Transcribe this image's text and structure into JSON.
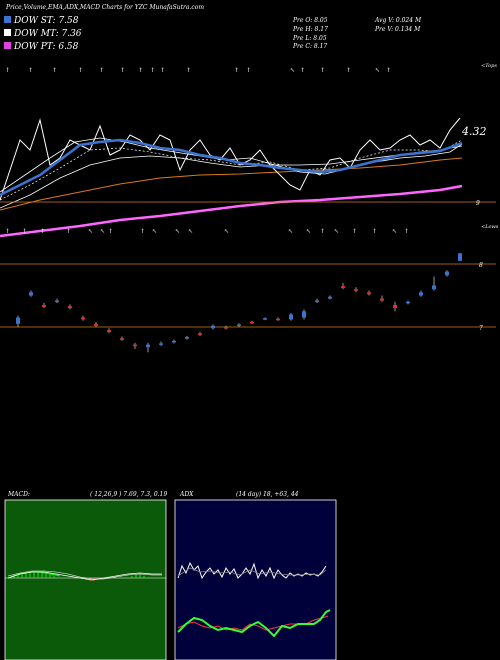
{
  "header": {
    "title": "Price,Volume,EMA,ADX,MACD Charts for YZC MunafaSutra.com"
  },
  "legend": [
    {
      "label": "DOW ST: 7.58",
      "color": "#3a73d0"
    },
    {
      "label": "DOW MT: 7.36",
      "color": "#ffffff"
    },
    {
      "label": "DOW PT: 6.58",
      "color": "#e040e0"
    }
  ],
  "stats": {
    "prev_open": "Pre   O: 8.05",
    "prev_high": "Pre   H: 8.17",
    "prev_low": "Pre   L: 8.05",
    "prev_close": "Pre   C: 8.17",
    "avg_volume": "Avg V: 0.024   M",
    "prev_volume": "Pre   V: 0.134   M"
  },
  "price_panel": {
    "top_label": "<Tops",
    "low_label": "<Lows",
    "value_label": "4.32",
    "right_label_9": "9",
    "right_label_8": "8",
    "right_label_7": "7"
  },
  "macd": {
    "label": "MACD:",
    "params": "( 12,26,9 ) 7.69,  7.3,  0.19",
    "bg": "#0a5a0a"
  },
  "adx": {
    "label": "ADX",
    "params": "(14  day) 18,  +63,  44",
    "bg": "#00003a"
  },
  "chart_data": {
    "type": "line",
    "title": "Price,Volume,EMA,ADX,MACD Charts for YZC MunafaSutra.com",
    "series": [
      {
        "name": "DOW ST",
        "last": 7.58
      },
      {
        "name": "DOW MT",
        "last": 7.36
      },
      {
        "name": "DOW PT",
        "last": 6.58
      }
    ],
    "candles": [
      {
        "o": 7.05,
        "c": 7.15,
        "h": 7.18,
        "l": 7.0
      },
      {
        "o": 7.5,
        "c": 7.55,
        "h": 7.58,
        "l": 7.48
      },
      {
        "o": 7.35,
        "c": 7.32,
        "h": 7.38,
        "l": 7.3
      },
      {
        "o": 7.4,
        "c": 7.42,
        "h": 7.45,
        "l": 7.38
      },
      {
        "o": 7.33,
        "c": 7.3,
        "h": 7.36,
        "l": 7.28
      },
      {
        "o": 7.15,
        "c": 7.12,
        "h": 7.18,
        "l": 7.1
      },
      {
        "o": 7.05,
        "c": 7.02,
        "h": 7.08,
        "l": 7.0
      },
      {
        "o": 6.95,
        "c": 6.92,
        "h": 6.98,
        "l": 6.9
      },
      {
        "o": 6.82,
        "c": 6.8,
        "h": 6.85,
        "l": 6.78
      },
      {
        "o": 6.72,
        "c": 6.7,
        "h": 6.75,
        "l": 6.65
      },
      {
        "o": 6.68,
        "c": 6.72,
        "h": 6.75,
        "l": 6.6
      },
      {
        "o": 6.72,
        "c": 6.74,
        "h": 6.77,
        "l": 6.7
      },
      {
        "o": 6.76,
        "c": 6.78,
        "h": 6.8,
        "l": 6.74
      },
      {
        "o": 6.82,
        "c": 6.84,
        "h": 6.86,
        "l": 6.8
      },
      {
        "o": 6.9,
        "c": 6.88,
        "h": 6.92,
        "l": 6.86
      },
      {
        "o": 6.98,
        "c": 7.02,
        "h": 7.04,
        "l": 6.96
      },
      {
        "o": 7.0,
        "c": 6.98,
        "h": 7.02,
        "l": 6.96
      },
      {
        "o": 7.02,
        "c": 7.04,
        "h": 7.06,
        "l": 7.0
      },
      {
        "o": 7.08,
        "c": 7.06,
        "h": 7.1,
        "l": 7.05
      },
      {
        "o": 7.12,
        "c": 7.14,
        "h": 7.15,
        "l": 7.11
      },
      {
        "o": 7.13,
        "c": 7.12,
        "h": 7.15,
        "l": 7.1
      },
      {
        "o": 7.12,
        "c": 7.2,
        "h": 7.22,
        "l": 7.1
      },
      {
        "o": 7.15,
        "c": 7.25,
        "h": 7.28,
        "l": 7.12
      },
      {
        "o": 7.4,
        "c": 7.42,
        "h": 7.45,
        "l": 7.38
      },
      {
        "o": 7.45,
        "c": 7.48,
        "h": 7.5,
        "l": 7.44
      },
      {
        "o": 7.65,
        "c": 7.62,
        "h": 7.7,
        "l": 7.6
      },
      {
        "o": 7.6,
        "c": 7.58,
        "h": 7.63,
        "l": 7.55
      },
      {
        "o": 7.55,
        "c": 7.52,
        "h": 7.58,
        "l": 7.5
      },
      {
        "o": 7.45,
        "c": 7.42,
        "h": 7.5,
        "l": 7.4
      },
      {
        "o": 7.35,
        "c": 7.3,
        "h": 7.4,
        "l": 7.25
      },
      {
        "o": 7.38,
        "c": 7.4,
        "h": 7.42,
        "l": 7.36
      },
      {
        "o": 7.5,
        "c": 7.55,
        "h": 7.58,
        "l": 7.48
      },
      {
        "o": 7.6,
        "c": 7.66,
        "h": 7.8,
        "l": 7.58
      },
      {
        "o": 7.82,
        "c": 7.88,
        "h": 7.9,
        "l": 7.8
      },
      {
        "o": 8.05,
        "c": 8.17,
        "h": 8.17,
        "l": 8.05
      }
    ],
    "ylim": [
      6.5,
      8.3
    ]
  }
}
